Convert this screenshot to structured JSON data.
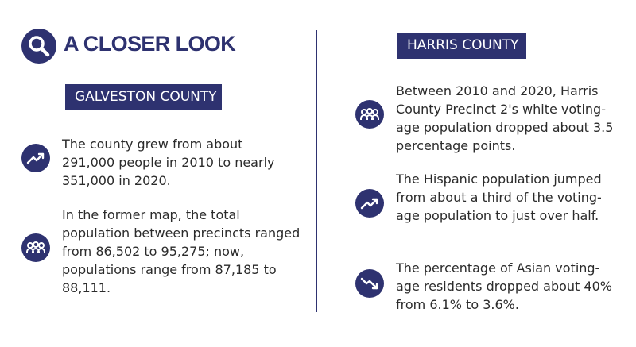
{
  "header": {
    "title": "A CLOSER LOOK",
    "icon": "magnifier-icon"
  },
  "galveston": {
    "badge": "GALVESTON COUNTY",
    "items": [
      {
        "icon": "trend-up-icon",
        "text": "The county grew from about 291,000 people in 2010 to nearly 351,000 in 2020."
      },
      {
        "icon": "people-group-icon",
        "text": "In the former map, the total population between precincts ranged from 86,502 to 95,275; now, populations range from 87,185 to 88,111."
      }
    ]
  },
  "harris": {
    "badge": "HARRIS COUNTY",
    "items": [
      {
        "icon": "people-group-icon",
        "text": "Between 2010 and 2020, Harris County Precinct 2's white voting-age population dropped about 3.5 percentage points."
      },
      {
        "icon": "trend-up-icon",
        "text": "The Hispanic population jumped from about a third of the voting-age population to just over half."
      },
      {
        "icon": "trend-down-icon",
        "text": "The percentage of Asian voting-age residents dropped about 40% from 6.1% to 3.6%."
      }
    ]
  },
  "colors": {
    "navy": "#2e3270",
    "text": "#2b2b2b"
  }
}
